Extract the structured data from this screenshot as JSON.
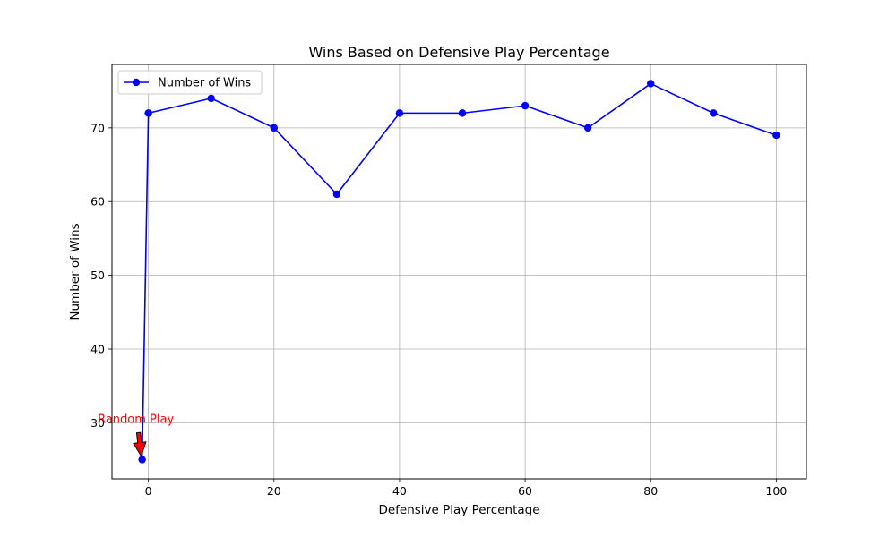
{
  "chart_data": {
    "type": "line",
    "title": "Wins Based on Defensive Play Percentage",
    "xlabel": "Defensive Play Percentage",
    "ylabel": "Number of Wins",
    "xlim": [
      -5.8,
      104.8
    ],
    "ylim": [
      22.4,
      78.6
    ],
    "xticks": [
      0,
      20,
      40,
      60,
      80,
      100
    ],
    "yticks": [
      30,
      40,
      50,
      60,
      70
    ],
    "grid": true,
    "legend_position": "top-left",
    "series": [
      {
        "name": "Number of Wins",
        "color": "#0000ff",
        "x": [
          -1,
          0,
          10,
          20,
          30,
          40,
          50,
          60,
          70,
          80,
          90,
          100
        ],
        "y": [
          25,
          72,
          74,
          70,
          61,
          72,
          72,
          73,
          70,
          76,
          72,
          69
        ]
      }
    ],
    "annotations": [
      {
        "text": "Random Play",
        "color": "#ff0000",
        "point": [
          -1,
          25
        ],
        "text_anchor": [
          -2,
          30
        ],
        "arrow_color": "#ff0000"
      }
    ]
  }
}
